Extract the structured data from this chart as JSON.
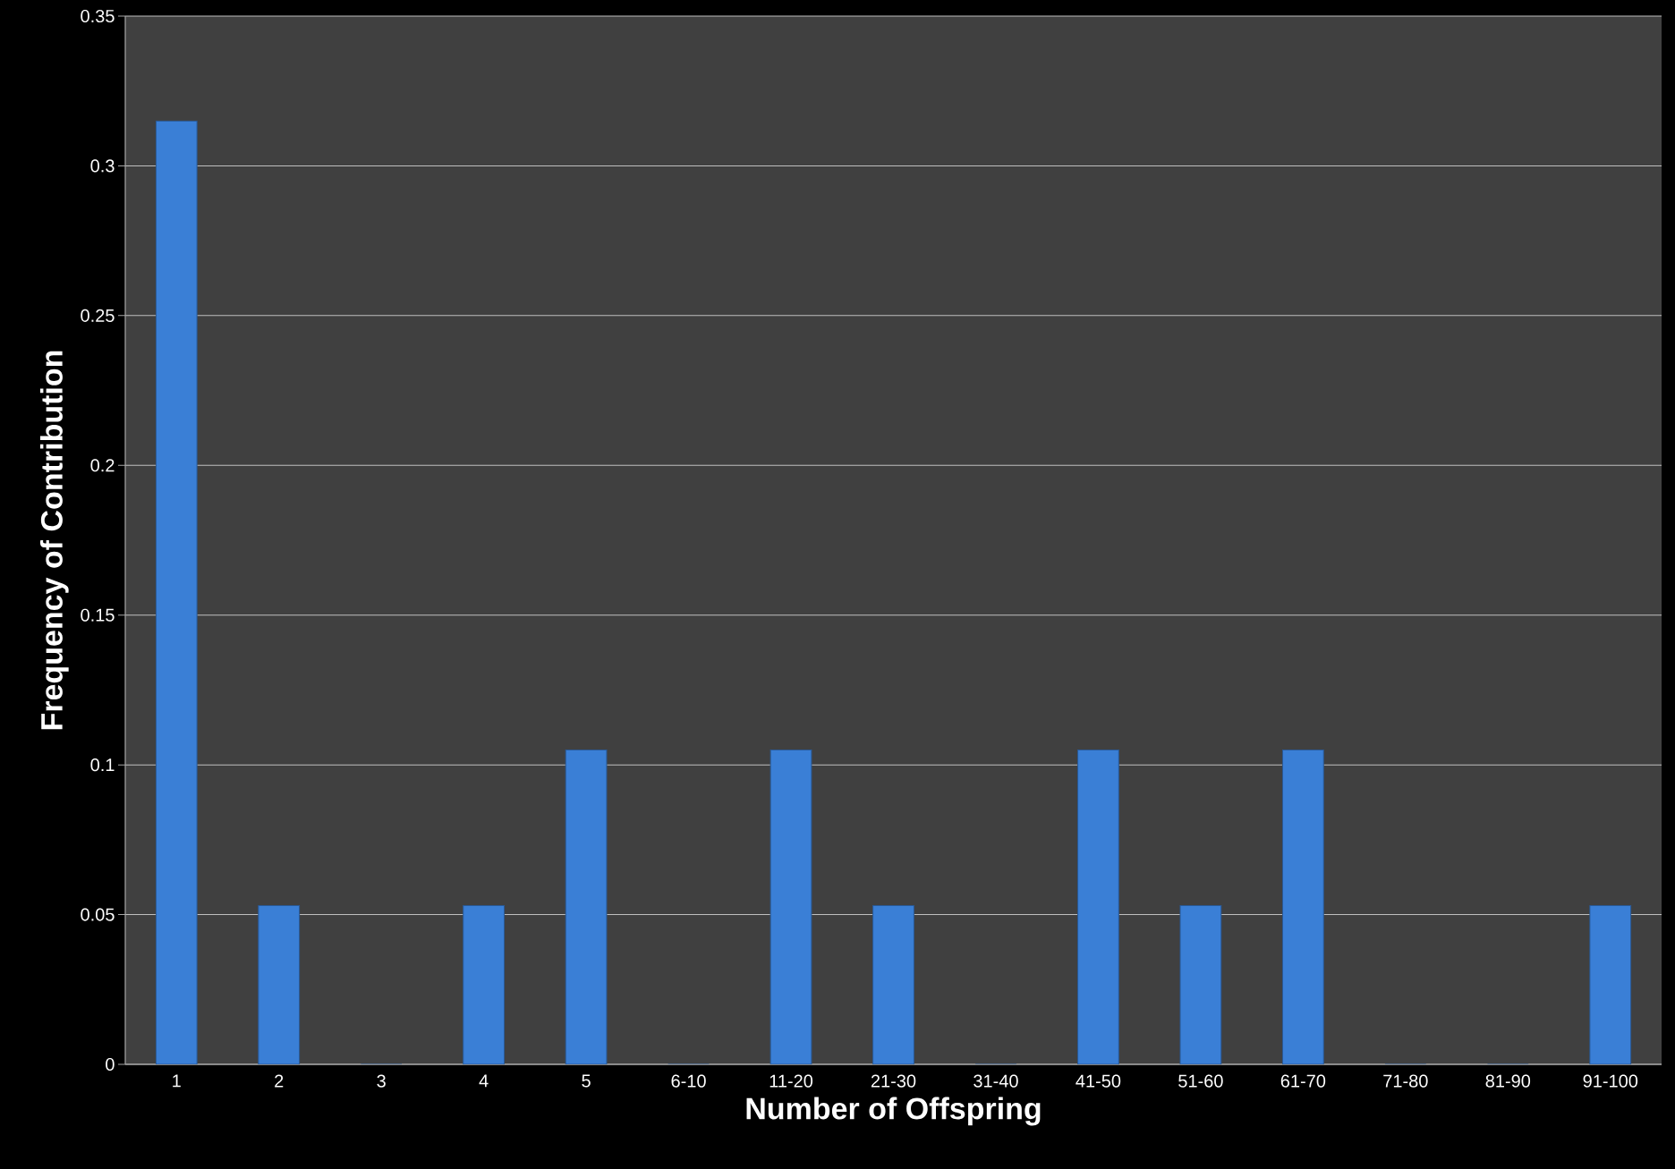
{
  "chart_data": {
    "type": "bar",
    "xlabel": "Number of Offspring",
    "ylabel": "Frequency of Contribution",
    "categories": [
      "1",
      "2",
      "3",
      "4",
      "5",
      "6-10",
      "11-20",
      "21-30",
      "31-40",
      "41-50",
      "51-60",
      "61-70",
      "71-80",
      "81-90",
      "91-100"
    ],
    "values": [
      0.315,
      0.053,
      0,
      0.053,
      0.105,
      0,
      0.105,
      0.053,
      0,
      0.105,
      0.053,
      0.105,
      0,
      0,
      0.053
    ],
    "color": "#3a7fd6",
    "ylim": [
      0,
      0.35
    ],
    "yticks": [
      0,
      0.05,
      0.1,
      0.15,
      0.2,
      0.25,
      0.3,
      0.35
    ],
    "grid": "y"
  }
}
